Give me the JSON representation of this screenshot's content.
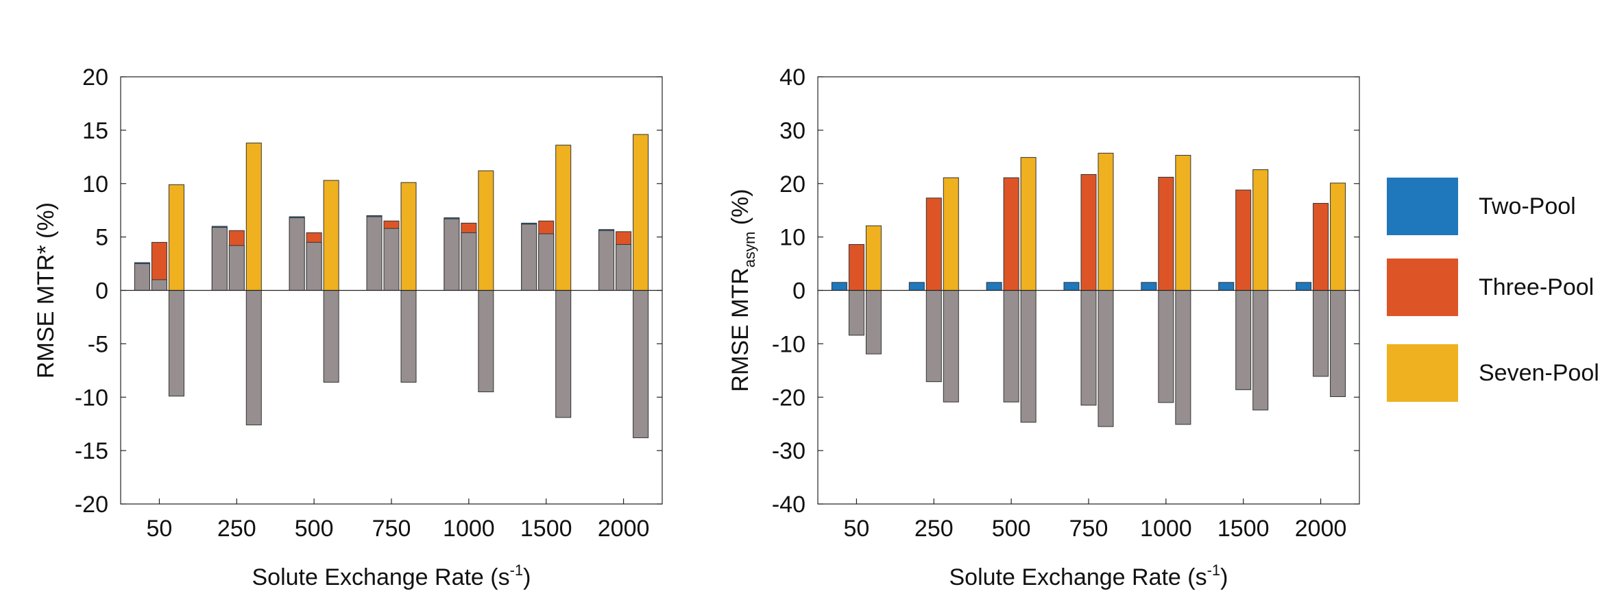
{
  "chart_data": [
    {
      "type": "bar",
      "title": "",
      "xlabel": "Solute Exchange Rate (s",
      "xlabel_sup": "-1",
      "xlabel_suffix": ")",
      "ylabel": "RMSE MTR* (%)",
      "ylim": [
        -20,
        20
      ],
      "yticks": [
        -20,
        -15,
        -10,
        -5,
        0,
        5,
        10,
        15,
        20
      ],
      "categories": [
        "50",
        "250",
        "500",
        "750",
        "1000",
        "1500",
        "2000"
      ],
      "series": [
        {
          "name": "Two-Pool",
          "values": [
            2.6,
            6.0,
            6.9,
            7.0,
            6.8,
            6.3,
            5.7
          ]
        },
        {
          "name": "Three-Pool",
          "values": [
            4.5,
            5.6,
            5.4,
            6.5,
            6.3,
            6.5,
            5.5
          ]
        },
        {
          "name": "Seven-Pool",
          "values": [
            9.9,
            13.8,
            10.3,
            10.1,
            11.2,
            13.6,
            14.6
          ]
        }
      ],
      "gray_overlay": {
        "two_pool_positive": [
          2.5,
          5.9,
          6.8,
          6.9,
          6.7,
          6.2,
          5.6
        ],
        "three_pool_positive": [
          1.0,
          4.2,
          4.5,
          5.8,
          5.4,
          5.3,
          4.3
        ],
        "seven_pool_negative": [
          -9.9,
          -12.6,
          -8.6,
          -8.6,
          -9.5,
          -11.9,
          -13.8
        ]
      }
    },
    {
      "type": "bar",
      "title": "",
      "xlabel": "Solute Exchange Rate (s",
      "xlabel_sup": "-1",
      "xlabel_suffix": ")",
      "ylabel": "RMSE MTR",
      "ylabel_sub": "asym",
      "ylabel_suffix": " (%)",
      "ylim": [
        -40,
        40
      ],
      "yticks": [
        -40,
        -30,
        -20,
        -10,
        0,
        10,
        20,
        30,
        40
      ],
      "categories": [
        "50",
        "250",
        "500",
        "750",
        "1000",
        "1500",
        "2000"
      ],
      "series": [
        {
          "name": "Two-Pool",
          "values": [
            1.5,
            1.5,
            1.5,
            1.5,
            1.5,
            1.5,
            1.5
          ]
        },
        {
          "name": "Three-Pool",
          "values": [
            8.6,
            17.3,
            21.1,
            21.7,
            21.2,
            18.8,
            16.3
          ]
        },
        {
          "name": "Seven-Pool",
          "values": [
            12.1,
            21.1,
            24.9,
            25.7,
            25.3,
            22.6,
            20.1
          ]
        }
      ],
      "gray_overlay": {
        "three_pool_negative": [
          -8.4,
          -17.1,
          -20.9,
          -21.5,
          -21.0,
          -18.6,
          -16.1
        ],
        "seven_pool_negative": [
          -11.9,
          -20.9,
          -24.7,
          -25.5,
          -25.1,
          -22.4,
          -19.9
        ]
      }
    }
  ],
  "legend": {
    "placement": "right",
    "items": [
      {
        "label": "Two-Pool",
        "color": "#1f77bc"
      },
      {
        "label": "Three-Pool",
        "color": "#dd5527"
      },
      {
        "label": "Seven-Pool",
        "color": "#efb120"
      }
    ]
  },
  "colors": {
    "two_pool": "#1f77bc",
    "three_pool": "#dd5527",
    "seven_pool": "#efb120",
    "gray": "#978f8f"
  }
}
